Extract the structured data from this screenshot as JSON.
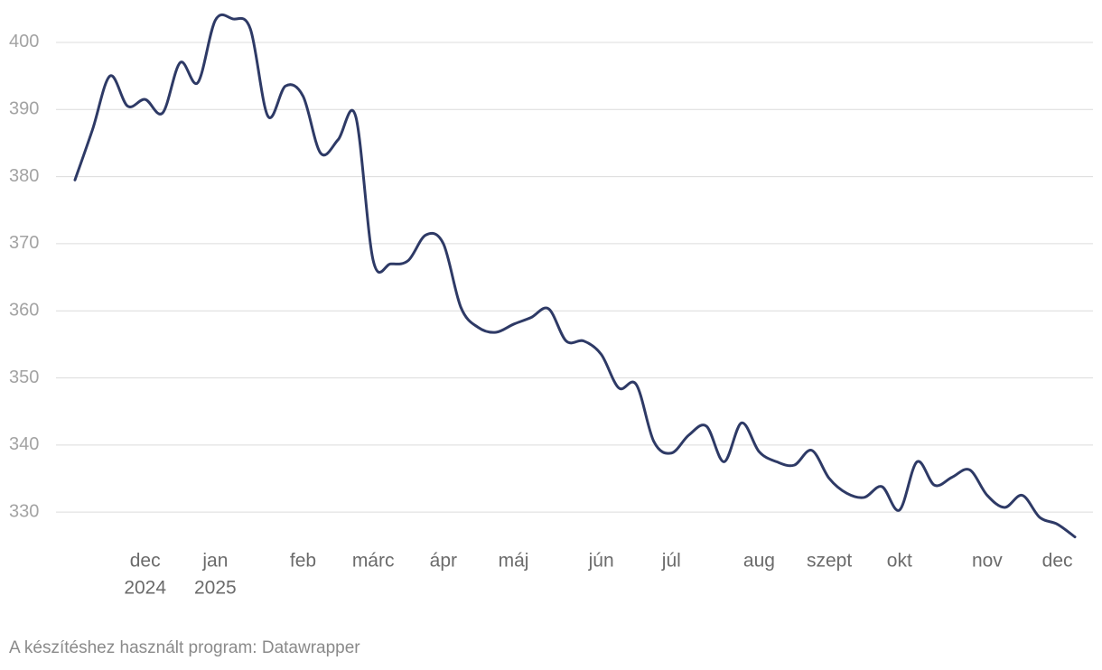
{
  "chart_data": {
    "type": "line",
    "categories": [
      null,
      null,
      null,
      null,
      "dec",
      null,
      null,
      null,
      "jan",
      null,
      null,
      null,
      null,
      "feb",
      null,
      null,
      null,
      "márc",
      null,
      null,
      null,
      "ápr",
      null,
      null,
      null,
      "máj",
      null,
      null,
      null,
      null,
      "jún",
      null,
      null,
      null,
      "júl",
      null,
      null,
      null,
      null,
      "aug",
      null,
      null,
      null,
      "szept",
      null,
      null,
      null,
      "okt",
      null,
      null,
      null,
      null,
      "nov",
      null,
      null,
      null,
      "dec",
      null
    ],
    "category_sublabels": [
      null,
      null,
      null,
      null,
      "2024",
      null,
      null,
      null,
      "2025",
      null,
      null,
      null,
      null,
      null,
      null,
      null,
      null,
      null,
      null,
      null,
      null,
      null,
      null,
      null,
      null,
      null,
      null,
      null,
      null,
      null,
      null,
      null,
      null,
      null,
      null,
      null,
      null,
      null,
      null,
      null,
      null,
      null,
      null,
      null,
      null,
      null,
      null,
      null,
      null,
      null,
      null,
      null,
      null,
      null,
      null,
      null,
      null,
      null
    ],
    "series": [
      {
        "color": "#2e3a66",
        "values": [
          379.5,
          387,
          395,
          390.5,
          391.5,
          389.5,
          397,
          394,
          403.3,
          403.5,
          402,
          389,
          393.5,
          392,
          383.5,
          385.5,
          389,
          367.5,
          367,
          367.5,
          371.3,
          370,
          360.5,
          357.5,
          356.8,
          358,
          359,
          360.3,
          355.5,
          355.5,
          353.5,
          348.5,
          349,
          340.5,
          338.8,
          341.5,
          342.8,
          337.5,
          343.3,
          339,
          337.5,
          337,
          339.2,
          335,
          332.8,
          332.2,
          333.8,
          330.3,
          337.5,
          334,
          335.2,
          336.3,
          332.5,
          330.7,
          332.5,
          329.2,
          328.2,
          326.3
        ]
      }
    ],
    "ylim": [
      325,
      405
    ],
    "yticks": [
      330,
      340,
      350,
      360,
      370,
      380,
      390,
      400
    ],
    "grid": true,
    "footer": "A készítéshez használt program: Datawrapper"
  }
}
